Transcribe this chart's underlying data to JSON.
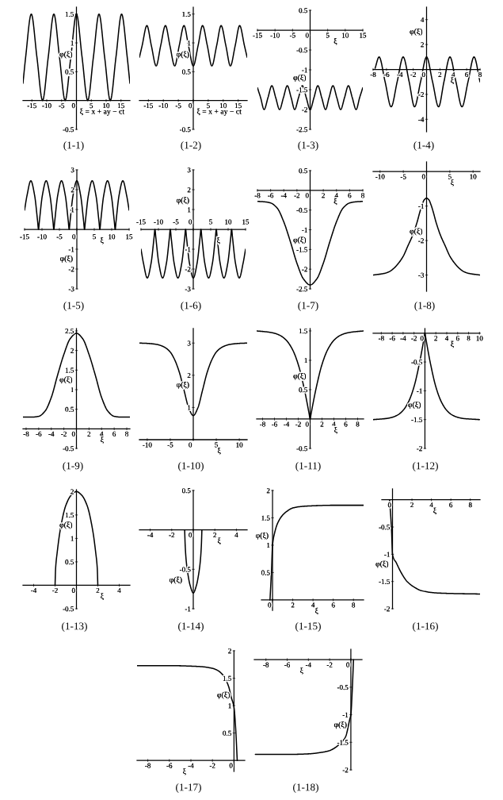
{
  "chart_data": [
    {
      "type": "line",
      "title": "(1-1)",
      "xlabel": "ξ = x + ay − ct",
      "ylabel": "φ(ξ)",
      "color": "#000000",
      "xlim": [
        -18,
        18
      ],
      "ylim": [
        -0.5,
        1.62
      ],
      "xticks": [
        -15,
        -10,
        -5,
        0,
        5,
        10,
        15
      ],
      "yticks": [
        -0.5,
        0.5,
        1,
        1.5
      ],
      "x": [
        -18,
        -17.1,
        -15.2,
        -13.3,
        -11.4,
        -9.5,
        -7.6,
        -5.7,
        -3.8,
        -1.9,
        0,
        1.9,
        3.8,
        5.7,
        7.6,
        9.5,
        11.4,
        13.3,
        15.2,
        17.1,
        18
      ],
      "values": [
        0.3,
        0.75,
        1.5,
        0.75,
        0,
        0.75,
        1.5,
        0.75,
        0,
        0.75,
        1.5,
        0.75,
        0,
        0.75,
        1.5,
        0.75,
        0,
        0.75,
        1.5,
        0.75,
        0.3
      ]
    },
    {
      "type": "line",
      "title": "(1-2)",
      "xlabel": "ξ = x + ay − ct",
      "ylabel": "φ(ξ)",
      "color": "#000000",
      "xlim": [
        -18,
        18
      ],
      "ylim": [
        -0.5,
        1.62
      ],
      "xticks": [
        -15,
        -10,
        -5,
        0,
        5,
        10,
        15
      ],
      "yticks": [
        -0.5,
        0.5,
        1,
        1.5
      ],
      "x": [
        -18,
        -17.1,
        -15.5,
        -14,
        -12.4,
        -10.9,
        -9.3,
        -7.8,
        -6.2,
        -4.7,
        -3.1,
        -1.6,
        0,
        1.6,
        3.1,
        4.7,
        6.2,
        7.8,
        9.3,
        10.9,
        12.4,
        14,
        15.5,
        17.1,
        18
      ],
      "values": [
        0.75,
        0.95,
        1.3,
        0.95,
        0.6,
        0.95,
        1.3,
        0.95,
        0.6,
        0.95,
        1.3,
        0.95,
        0.6,
        0.95,
        1.3,
        0.95,
        0.6,
        0.95,
        1.3,
        0.95,
        0.6,
        0.95,
        1.3,
        0.95,
        0.75
      ]
    },
    {
      "type": "line",
      "title": "(1-3)",
      "xlabel": "ξ",
      "ylabel": "φ(ξ)",
      "color": "#000000",
      "xlim": [
        -15,
        15
      ],
      "ylim": [
        -2.5,
        0.5
      ],
      "xticks": [
        -15,
        -10,
        -5,
        0,
        5,
        10,
        15
      ],
      "yticks": [
        -2.5,
        -2,
        -1.5,
        -1,
        -0.5,
        0.5
      ],
      "x": [
        -15,
        -14.1,
        -13.1,
        -12,
        -10.9,
        -9.8,
        -8.7,
        -7.6,
        -6.5,
        -5.4,
        -4.4,
        -3.3,
        -2.2,
        -1.1,
        0,
        1.1,
        2.2,
        3.3,
        4.4,
        5.4,
        6.5,
        7.6,
        8.7,
        9.8,
        10.9,
        12,
        13.1,
        14.1,
        15
      ],
      "values": [
        -1.45,
        -1.7,
        -2,
        -1.7,
        -1.4,
        -1.7,
        -2,
        -1.7,
        -1.4,
        -1.7,
        -2,
        -1.7,
        -1.4,
        -1.7,
        -2,
        -1.7,
        -1.4,
        -1.7,
        -2,
        -1.7,
        -1.4,
        -1.7,
        -2,
        -1.7,
        -1.4,
        -1.7,
        -2,
        -1.7,
        -1.45
      ]
    },
    {
      "type": "line",
      "title": "(1-4)",
      "xlabel": "ξ",
      "ylabel": "φ(ξ)",
      "color": "#000000",
      "xlim": [
        -8,
        8
      ],
      "ylim": [
        -5,
        5
      ],
      "xticks": [
        -8,
        -6,
        -4,
        -2,
        0,
        2,
        4,
        6,
        8
      ],
      "yticks": [
        -4,
        -2,
        2,
        4
      ],
      "x": [
        -7.7,
        -7.1,
        -6.2,
        -5.3,
        -4.4,
        -3.5,
        -2.6,
        -1.8,
        -0.9,
        0,
        0.9,
        1.8,
        2.6,
        3.5,
        4.4,
        5.3,
        6.2,
        7.1,
        8
      ],
      "values": [
        0.1,
        1,
        -1,
        -3,
        -1,
        1,
        -1,
        -3,
        -1,
        1,
        -1,
        -3,
        -1,
        1,
        -1,
        -3,
        -1,
        1,
        -1
      ]
    },
    {
      "type": "line",
      "title": "(1-5)",
      "xlabel": "ξ",
      "ylabel": "φ(ξ)",
      "color": "#000000",
      "xlim": [
        -15,
        15
      ],
      "ylim": [
        -3,
        3
      ],
      "xticks": [
        -15,
        -10,
        -5,
        0,
        5,
        10,
        15
      ],
      "yticks": [
        -3,
        -2,
        -1,
        1,
        2,
        3
      ],
      "x": [
        -15,
        -14.3,
        -13.2,
        -12.1,
        -11.25,
        -11,
        -10.75,
        -9.9,
        -8.8,
        -7.7,
        -6.85,
        -6.6,
        -6.35,
        -5.5,
        -4.4,
        -3.3,
        -2.45,
        -2.2,
        -1.95,
        -1.1,
        0,
        1.1,
        1.95,
        2.2,
        2.45,
        3.3,
        4.4,
        5.5,
        6.35,
        6.6,
        6.85,
        7.7,
        8.8,
        9.9,
        10.75,
        11,
        11.25,
        12.1,
        13.2,
        14.3,
        15
      ],
      "values": [
        0.97,
        1.7,
        2.45,
        1.7,
        0.4,
        0,
        0.4,
        1.7,
        2.45,
        1.7,
        0.4,
        0,
        0.4,
        1.7,
        2.45,
        1.7,
        0.4,
        0,
        0.4,
        1.7,
        2.45,
        1.7,
        0.4,
        0,
        0.4,
        1.7,
        2.45,
        1.7,
        0.4,
        0,
        0.4,
        1.7,
        2.45,
        1.7,
        0.4,
        0,
        0.4,
        1.7,
        2.45,
        1.7,
        0.97
      ]
    },
    {
      "type": "line",
      "title": "(1-6)",
      "xlabel": "ξ",
      "ylabel": "φ(ξ)",
      "color": "#000000",
      "xlim": [
        -15,
        15
      ],
      "ylim": [
        -3,
        3
      ],
      "xticks": [
        -15,
        -10,
        -5,
        0,
        5,
        10,
        15
      ],
      "yticks": [
        -3,
        -2,
        -1,
        1,
        2,
        3
      ],
      "x": [
        -15,
        -14.3,
        -13.2,
        -12.1,
        -11.25,
        -11,
        -10.75,
        -9.9,
        -8.8,
        -7.7,
        -6.85,
        -6.6,
        -6.35,
        -5.5,
        -4.4,
        -3.3,
        -2.45,
        -2.2,
        -1.95,
        -1.1,
        0,
        1.1,
        1.95,
        2.2,
        2.45,
        3.3,
        4.4,
        5.5,
        6.35,
        6.6,
        6.85,
        7.7,
        8.8,
        9.9,
        10.75,
        11,
        11.25,
        12.1,
        13.2,
        14.3,
        15
      ],
      "values": [
        -1,
        -1.7,
        -2.45,
        -1.7,
        -0.4,
        0,
        -0.4,
        -1.7,
        -2.45,
        -1.7,
        -0.4,
        0,
        -0.4,
        -1.7,
        -2.45,
        -1.7,
        -0.4,
        0,
        -0.4,
        -1.7,
        -2.45,
        -1.7,
        -0.4,
        0,
        -0.4,
        -1.7,
        -2.45,
        -1.7,
        -0.4,
        0,
        -0.4,
        -1.7,
        -2.45,
        -1.7,
        -0.4,
        0,
        -0.4,
        -1.7,
        -2.45,
        -1.7,
        -1
      ]
    },
    {
      "type": "line",
      "title": "(1-7)",
      "xlabel": "ξ",
      "ylabel": "φ(ξ)",
      "color": "#000000",
      "xlim": [
        -8,
        8
      ],
      "ylim": [
        -2.5,
        0.5
      ],
      "xticks": [
        -8,
        -6,
        -4,
        -2,
        0,
        2,
        4,
        6,
        8
      ],
      "yticks": [
        -2.5,
        -2,
        -1.5,
        -1,
        -0.5,
        0.5
      ],
      "x": [
        -8,
        -7,
        -6,
        -5,
        -4,
        -3,
        -2,
        -1,
        0,
        1,
        2,
        3,
        4,
        5,
        6,
        7,
        8
      ],
      "values": [
        -0.28,
        -0.29,
        -0.32,
        -0.45,
        -0.8,
        -1.3,
        -1.85,
        -2.25,
        -2.4,
        -2.25,
        -1.85,
        -1.3,
        -0.8,
        -0.45,
        -0.32,
        -0.29,
        -0.28
      ]
    },
    {
      "type": "line",
      "title": "(1-8)",
      "xlabel": "ξ",
      "ylabel": "φ(ξ)",
      "color": "#000000",
      "xlim": [
        -11.5,
        11.5
      ],
      "ylim": [
        -3.47,
        0.28
      ],
      "xticks": [
        -10,
        -5,
        0,
        5,
        10
      ],
      "yticks": [
        -3,
        -2,
        -1
      ],
      "x": [
        -11.5,
        -9,
        -8,
        -7,
        -6,
        -5,
        -4,
        -3,
        -2,
        -1.5,
        -1,
        -0.5,
        0,
        0.5,
        1,
        1.5,
        2,
        3,
        4,
        5,
        6,
        7,
        8,
        9,
        11.5
      ],
      "values": [
        -3,
        -2.95,
        -2.9,
        -2.8,
        -2.65,
        -2.45,
        -2.15,
        -1.85,
        -1.45,
        -1.2,
        -0.98,
        -0.82,
        -0.77,
        -0.82,
        -0.98,
        -1.2,
        -1.45,
        -1.85,
        -2.15,
        -2.45,
        -2.65,
        -2.8,
        -2.9,
        -2.95,
        -3
      ]
    },
    {
      "type": "line",
      "title": "(1-9)",
      "xlabel": "ξ",
      "ylabel": "φ(ξ)",
      "color": "#000000",
      "xlim": [
        -8.5,
        8.5
      ],
      "ylim": [
        -0.5,
        2.56
      ],
      "xticks": [
        -8,
        -6,
        -4,
        -2,
        0,
        2,
        4,
        6,
        8
      ],
      "yticks": [
        -0.5,
        0.5,
        1,
        1.5,
        2,
        2.5
      ],
      "x": [
        -8.5,
        -7,
        -6,
        -5,
        -4,
        -3,
        -2,
        -1,
        0,
        1,
        2,
        3,
        4,
        5,
        6,
        7,
        8.5
      ],
      "values": [
        0.3,
        0.3,
        0.32,
        0.45,
        0.8,
        1.37,
        1.9,
        2.3,
        2.44,
        2.3,
        1.9,
        1.37,
        0.8,
        0.45,
        0.32,
        0.3,
        0.3
      ]
    },
    {
      "type": "line",
      "title": "(1-10)",
      "xlabel": "ξ",
      "ylabel": "φ(ξ)",
      "color": "#000000",
      "xlim": [
        -11.7,
        11.7
      ],
      "ylim": [
        0,
        3.45
      ],
      "xticks": [
        -10,
        -5,
        0,
        5,
        10
      ],
      "yticks": [
        1,
        2,
        3
      ],
      "x": [
        -11.7,
        -10,
        -8,
        -7,
        -6,
        -5,
        -4,
        -3,
        -2,
        -1,
        0,
        1,
        2,
        3,
        4,
        5,
        6,
        7,
        8,
        10,
        11.7
      ],
      "values": [
        3,
        2.99,
        2.96,
        2.92,
        2.85,
        2.72,
        2.47,
        2.08,
        1.53,
        0.99,
        0.75,
        0.99,
        1.53,
        2.08,
        2.47,
        2.72,
        2.85,
        2.92,
        2.96,
        2.99,
        3
      ]
    },
    {
      "type": "line",
      "title": "(1-11)",
      "xlabel": "ξ",
      "ylabel": "φ(ξ)",
      "color": "#000000",
      "xlim": [
        -9,
        9
      ],
      "ylim": [
        -0.5,
        1.54
      ],
      "xticks": [
        -8,
        -6,
        -4,
        -2,
        0,
        2,
        4,
        6,
        8
      ],
      "yticks": [
        -0.5,
        0.5,
        1,
        1.5
      ],
      "x": [
        -9,
        -7,
        -6,
        -5,
        -4,
        -3,
        -2,
        -1,
        -0.5,
        -0.15,
        0,
        0.15,
        0.5,
        1,
        2,
        3,
        4,
        5,
        6,
        7,
        9
      ],
      "values": [
        1.5,
        1.48,
        1.46,
        1.42,
        1.34,
        1.19,
        0.93,
        0.52,
        0.27,
        0.08,
        0,
        0.08,
        0.27,
        0.52,
        0.93,
        1.19,
        1.34,
        1.42,
        1.46,
        1.48,
        1.5
      ]
    },
    {
      "type": "line",
      "title": "(1-12)",
      "xlabel": "ξ",
      "ylabel": "φ(ξ)",
      "color": "#000000",
      "xlim": [
        -9.5,
        10.1
      ],
      "ylim": [
        -2,
        0.08
      ],
      "xticks": [
        -8,
        -6,
        -4,
        -2,
        0,
        2,
        4,
        6,
        8,
        10
      ],
      "yticks": [
        -2,
        -1.5,
        -1,
        -0.5
      ],
      "x": [
        -9.5,
        -7,
        -6,
        -5,
        -4,
        -3,
        -2,
        -1,
        -0.5,
        -0.15,
        0,
        0.15,
        0.5,
        1,
        2,
        3,
        4,
        5,
        6,
        7,
        10
      ],
      "values": [
        -1.5,
        -1.48,
        -1.46,
        -1.42,
        -1.34,
        -1.19,
        -0.93,
        -0.52,
        -0.27,
        -0.08,
        0,
        -0.08,
        -0.27,
        -0.52,
        -0.93,
        -1.19,
        -1.34,
        -1.42,
        -1.46,
        -1.48,
        -1.5
      ]
    },
    {
      "type": "line",
      "title": "(1-13)",
      "xlabel": "ξ",
      "ylabel": "φ(ξ)",
      "color": "#000000",
      "xlim": [
        -5,
        5
      ],
      "ylim": [
        -0.5,
        2.04
      ],
      "xticks": [
        -4,
        -2,
        0,
        2,
        4
      ],
      "yticks": [
        -0.5,
        0.5,
        1,
        1.5,
        2
      ],
      "x": [
        -2,
        -1.95,
        -1.8,
        -1.5,
        -1,
        -0.5,
        0,
        0.5,
        1,
        1.5,
        1.8,
        1.95,
        2
      ],
      "values": [
        0,
        0.35,
        0.7,
        1.2,
        1.7,
        1.92,
        2,
        1.92,
        1.7,
        1.2,
        0.7,
        0.35,
        0
      ]
    },
    {
      "type": "line",
      "title": "(1-14)",
      "xlabel": "ξ",
      "ylabel": "φ(ξ)",
      "color": "#000000",
      "xlim": [
        -5,
        5
      ],
      "ylim": [
        -1,
        0.5
      ],
      "xticks": [
        -4,
        -2,
        0,
        2,
        4
      ],
      "yticks": [
        -1,
        -0.5,
        0.5
      ],
      "x": [
        -0.8,
        -0.75,
        -0.65,
        -0.5,
        -0.3,
        0,
        0.3,
        0.5,
        0.65,
        0.75,
        0.8
      ],
      "values": [
        0,
        -0.2,
        -0.4,
        -0.56,
        -0.7,
        -0.8,
        -0.7,
        -0.56,
        -0.4,
        -0.2,
        0
      ]
    },
    {
      "type": "line",
      "title": "(1-15)",
      "xlabel": "ξ",
      "ylabel": "φ(ξ)",
      "color": "#000000",
      "xlim": [
        -1.1,
        9
      ],
      "ylim": [
        -0.19,
        2
      ],
      "xticks": [
        0,
        2,
        4,
        6,
        8
      ],
      "yticks": [
        0.5,
        1,
        1.5,
        2
      ],
      "x": [
        -0.25,
        -0.1,
        0,
        0.2,
        0.5,
        1,
        1.5,
        2,
        3,
        4,
        6,
        9
      ],
      "values": [
        0,
        0.55,
        1,
        1.22,
        1.4,
        1.55,
        1.63,
        1.68,
        1.71,
        1.72,
        1.73,
        1.73
      ]
    },
    {
      "type": "line",
      "title": "(1-16)",
      "xlabel": "ξ",
      "ylabel": "φ(ξ)",
      "color": "#000000",
      "xlim": [
        -1.1,
        9
      ],
      "ylim": [
        -2,
        0.2
      ],
      "xticks": [
        0,
        2,
        4,
        6,
        8
      ],
      "yticks": [
        -2,
        -1.5,
        -1,
        -0.5
      ],
      "x": [
        -0.3,
        -0.1,
        0,
        0.4,
        0.9,
        1.5,
        2.2,
        3,
        4.5,
        6,
        9
      ],
      "values": [
        0,
        -0.55,
        -1,
        -1.16,
        -1.34,
        -1.5,
        -1.6,
        -1.67,
        -1.71,
        -1.72,
        -1.73
      ]
    },
    {
      "type": "line",
      "title": "(1-17)",
      "xlabel": "ξ",
      "ylabel": "φ(ξ)",
      "color": "#000000",
      "xlim": [
        -9,
        1
      ],
      "ylim": [
        -0.2,
        2
      ],
      "xticks": [
        -8,
        -6,
        -4,
        -2,
        0
      ],
      "yticks": [
        0.5,
        1,
        1.5,
        2
      ],
      "x": [
        -9,
        -6,
        -4,
        -3,
        -2,
        -1.5,
        -1,
        -0.5,
        -0.25,
        0,
        0.15,
        0.3
      ],
      "values": [
        1.73,
        1.73,
        1.72,
        1.71,
        1.68,
        1.64,
        1.55,
        1.35,
        1.15,
        0.97,
        0.6,
        0
      ]
    },
    {
      "type": "line",
      "title": "(1-18)",
      "xlabel": "ξ",
      "ylabel": "φ(ξ)",
      "color": "#000000",
      "xlim": [
        -9.1,
        1.05
      ],
      "ylim": [
        -2,
        0.19
      ],
      "xticks": [
        -8,
        -6,
        -4,
        -2,
        0
      ],
      "yticks": [
        -2,
        -1.5,
        -1,
        -0.5
      ],
      "x": [
        -9,
        -6,
        -4,
        -3,
        -2,
        -1.5,
        -1,
        -0.5,
        -0.1,
        0,
        0.12,
        0.25
      ],
      "values": [
        -1.72,
        -1.72,
        -1.71,
        -1.69,
        -1.65,
        -1.6,
        -1.52,
        -1.4,
        -1.08,
        -1,
        -0.6,
        0
      ]
    }
  ]
}
